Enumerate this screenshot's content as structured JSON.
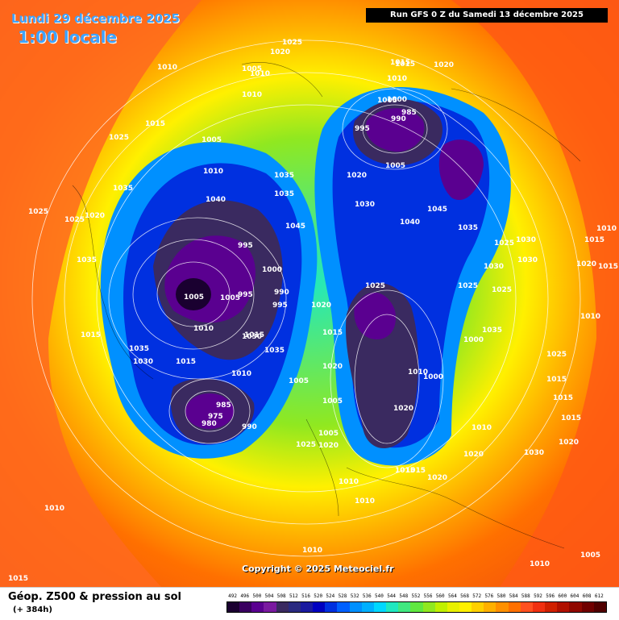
{
  "header": {
    "title": "Lundi 29 décembre 2025",
    "subtitle": "1:00 locale",
    "run": "Run GFS 0 Z du Samedi 13 décembre 2025"
  },
  "copyright": "Copyright © 2025 Meteociel.fr",
  "legend": {
    "title": "Géop. Z500 & pression au sol",
    "subtitle": "(+ 384h)",
    "scale": [
      "492",
      "496",
      "500",
      "504",
      "508",
      "512",
      "516",
      "520",
      "524",
      "528",
      "532",
      "536",
      "540",
      "544",
      "548",
      "552",
      "556",
      "560",
      "564",
      "568",
      "572",
      "576",
      "580",
      "584",
      "588",
      "592",
      "596",
      "600",
      "604",
      "608",
      "612"
    ],
    "colors": [
      "#1a0030",
      "#3a0060",
      "#5a0090",
      "#7a1aa0",
      "#3a2a60",
      "#2a2a80",
      "#1a1aa0",
      "#0000c0",
      "#0030e0",
      "#0060ff",
      "#0090ff",
      "#00b0ff",
      "#00d8ff",
      "#20e8c0",
      "#40e880",
      "#60e840",
      "#90e820",
      "#c0f000",
      "#e8f000",
      "#fff000",
      "#ffd000",
      "#ffb000",
      "#ff9000",
      "#ff7000",
      "#ff5020",
      "#f03010",
      "#d02000",
      "#b01000",
      "#900800",
      "#700000",
      "#500000"
    ]
  },
  "pressure_labels": [
    "1025",
    "1020",
    "1010",
    "1005",
    "1010",
    "1010",
    "1015",
    "1025",
    "1005",
    "1010",
    "1040",
    "1035",
    "1035",
    "1035",
    "1020",
    "1025",
    "1025",
    "1035",
    "1015",
    "1030",
    "1035",
    "1015",
    "995",
    "1000",
    "1005",
    "995",
    "990",
    "995",
    "1005",
    "1010",
    "1020",
    "1045",
    "1035",
    "1010",
    "1005",
    "1015",
    "1030",
    "980",
    "975",
    "985",
    "990",
    "1025",
    "1020",
    "1015",
    "1020",
    "1005",
    "1015",
    "1015",
    "1020",
    "1010",
    "1005",
    "1015",
    "1010",
    "1015",
    "1020",
    "1000",
    "985",
    "990",
    "995",
    "1005",
    "1020",
    "1030",
    "1040",
    "1045",
    "1035",
    "1025",
    "1030",
    "1030",
    "1025",
    "1025",
    "1030",
    "1035",
    "1000",
    "1010",
    "1000",
    "1020",
    "1005",
    "1025",
    "1010",
    "1010",
    "1020",
    "1030",
    "1025",
    "1015",
    "1015",
    "1015",
    "1020",
    "1015",
    "1010",
    "1015",
    "1020",
    "1010",
    "1005",
    "1010",
    "1010",
    "1015",
    "1010",
    "1020"
  ]
}
